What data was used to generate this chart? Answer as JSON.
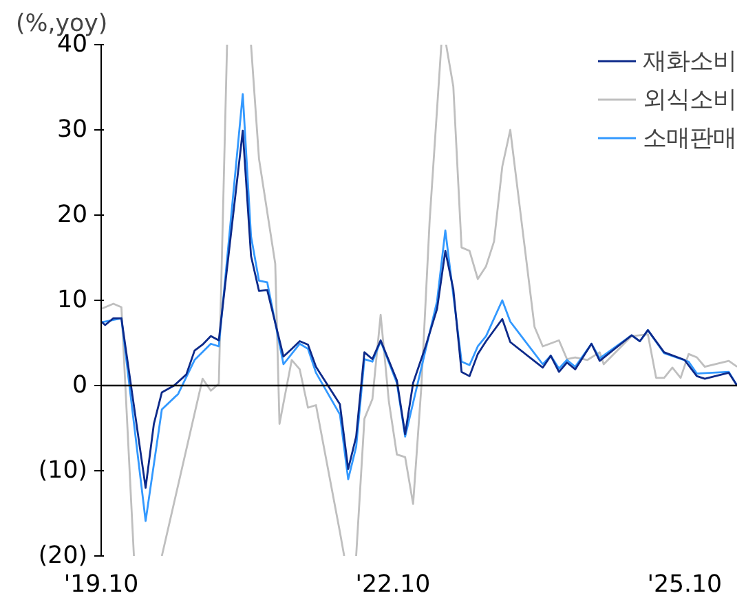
{
  "chart_data": {
    "type": "line",
    "ylabel": "(%,yoy)",
    "xlim": [
      "2019-10",
      "2026-04-16"
    ],
    "ylim": [
      -20,
      40
    ],
    "xticks": [
      {
        "value": "2019-10",
        "label": "'19.10"
      },
      {
        "value": "2022-10",
        "label": "'22.10"
      },
      {
        "value": "2025-10",
        "label": "'25.10"
      }
    ],
    "yticks": [
      {
        "value": -20,
        "label": "(20)"
      },
      {
        "value": -10,
        "label": "(10)"
      },
      0,
      10,
      20,
      30,
      40
    ],
    "grid": false,
    "legend": "top right",
    "marker": "none",
    "line_style": "solid",
    "ref_lines": [
      {
        "axis": "y",
        "value": 0,
        "color": "#000000"
      }
    ],
    "series": [
      {
        "name": "외식소비",
        "color": "#bfbfbf",
        "x": [
          "2019-10",
          "2019-11-16",
          "2019-12-16",
          "2020-02",
          "2020-03-16",
          "2020-05-16",
          "2020-10-16",
          "2020-11-16",
          "2020-12-16",
          "2021-01-16",
          "2021-02-16",
          "2021-04-16",
          "2021-05-16",
          "2021-07-16",
          "2021-08",
          "2021-09-16",
          "2021-10-16",
          "2021-11-16",
          "2021-12-16",
          "2022-03-16",
          "2022-04",
          "2022-04-16",
          "2022-05-16",
          "2022-06-16",
          "2022-07-16",
          "2022-08-16",
          "2022-09-16",
          "2022-10-16",
          "2022-11-16",
          "2022-12-16",
          "2023-01-16",
          "2023-02-16",
          "2023-04-01",
          "2023-04-06",
          "2023-04-19",
          "2023-05-16",
          "2023-06-16",
          "2023-07-16",
          "2023-08-16",
          "2023-09-16",
          "2023-10-16",
          "2023-11-16",
          "2023-12-16",
          "2024-03-16",
          "2024-04-16",
          "2024-06-16",
          "2024-07-16",
          "2024-08-16",
          "2024-10",
          "2024-11-16",
          "2024-12",
          "2025-03-16",
          "2025-05-16",
          "2025-06-16",
          "2025-07-16",
          "2025-08-16",
          "2025-09-16",
          "2025-10-16",
          "2025-11-16",
          "2025-12-16",
          "2026-03-16",
          "2026-04-16"
        ],
        "values": [
          9,
          9.6,
          9.2,
          -20,
          null,
          -20,
          0.8,
          -0.6,
          0.2,
          40,
          null,
          40,
          26.6,
          14.3,
          -4.5,
          3,
          1.9,
          -2.6,
          -2.3,
          -17.2,
          -20,
          null,
          -20,
          -3.9,
          -1.6,
          8.3,
          -1.9,
          -8.1,
          -8.4,
          -13.9,
          -0.1,
          19.3,
          40,
          null,
          40,
          35.1,
          16.2,
          15.8,
          12.5,
          14,
          16.9,
          25.7,
          30,
          6.9,
          4.6,
          5.3,
          3.1,
          3.3,
          3,
          3.9,
          2.5,
          5.8,
          6.0,
          0.9,
          0.9,
          2.1,
          0.9,
          3.7,
          3.3,
          2.2,
          2.9,
          2.2
        ]
      },
      {
        "name": "소매판매",
        "color": "#3399ff",
        "x": [
          "2019-10",
          "2019-12-16",
          "2020-03-16",
          "2020-05-16",
          "2020-07-16",
          "2020-09-16",
          "2020-11-16",
          "2020-12-16",
          "2021-03-16",
          "2021-04-16",
          "2021-05-16",
          "2021-06-16",
          "2021-08-16",
          "2021-10-16",
          "2021-11-16",
          "2021-12-16",
          "2022-03-16",
          "2022-04-16",
          "2022-05-16",
          "2022-06-16",
          "2022-07-16",
          "2022-08-16",
          "2022-10-16",
          "2022-11-16",
          "2023-03-16",
          "2023-04-16",
          "2023-06-16",
          "2023-07-16",
          "2023-08-16",
          "2023-09-16",
          "2023-11-16",
          "2023-12-16",
          "2024-04-16",
          "2024-05-16",
          "2024-06-16",
          "2024-07-16",
          "2024-08-16",
          "2024-10-16",
          "2024-11-16",
          "2025-03-16",
          "2025-04-16",
          "2025-05-16",
          "2025-07-16",
          "2025-10-16",
          "2025-11-16",
          "2026-03-16",
          "2026-04-16"
        ],
        "values": [
          7.4,
          7.9,
          -15.9,
          -2.8,
          -1,
          3,
          4.9,
          4.6,
          34.2,
          17.5,
          12.3,
          12.1,
          2.5,
          4.9,
          4.3,
          1.5,
          -3.4,
          -11.0,
          -7.2,
          3.1,
          2.8,
          5.2,
          0.3,
          -6.0,
          9.9,
          18.2,
          2.8,
          2.4,
          4.6,
          5.8,
          10,
          7.5,
          2.5,
          3.5,
          2.0,
          3.0,
          2.2,
          4.9,
          3.2,
          5.9,
          5.2,
          6.5,
          3.8,
          2.8,
          1.4,
          1.6,
          0
        ]
      },
      {
        "name": "재화소비",
        "color": "#0d2a8a",
        "x": [
          "2019-10",
          "2019-10-16",
          "2019-11-16",
          "2019-12-16",
          "2020-03-16",
          "2020-04-16",
          "2020-05-16",
          "2020-07",
          "2020-08-16",
          "2020-09-16",
          "2020-10-16",
          "2020-11-16",
          "2020-12-16",
          "2021-03-16",
          "2021-04-16",
          "2021-05-16",
          "2021-06-16",
          "2021-08-16",
          "2021-09-16",
          "2021-10-16",
          "2021-11-16",
          "2021-12-16",
          "2022-03-16",
          "2022-04-16",
          "2022-05-16",
          "2022-06-16",
          "2022-07-16",
          "2022-08-16",
          "2022-10-16",
          "2022-11-16",
          "2022-12-16",
          "2023-02",
          "2023-03-16",
          "2023-04-16",
          "2023-05-16",
          "2023-06-16",
          "2023-07-16",
          "2023-08-16",
          "2023-09-16",
          "2023-11-16",
          "2023-12-16",
          "2024-04-16",
          "2024-05-16",
          "2024-06-16",
          "2024-07-16",
          "2024-08-16",
          "2024-10-16",
          "2024-11-16",
          "2025-03-16",
          "2025-04-16",
          "2025-05-16",
          "2025-07-16",
          "2025-10",
          "2025-11-16",
          "2025-12-16",
          "2026-03-16",
          "2026-04-16"
        ],
        "values": [
          7.5,
          7.1,
          7.9,
          7.9,
          -12,
          -4.5,
          -0.8,
          0,
          1.3,
          4.1,
          4.8,
          5.8,
          5.3,
          29.9,
          15.2,
          11.1,
          11.2,
          3.4,
          4.3,
          5.2,
          4.8,
          2.2,
          -2.2,
          -9.8,
          -6,
          3.9,
          3.1,
          5.3,
          0.6,
          -5.7,
          0.3,
          4.6,
          9,
          15.8,
          11.3,
          1.6,
          1.1,
          3.7,
          5.2,
          7.8,
          5.1,
          2.1,
          3.5,
          1.6,
          2.7,
          1.9,
          4.9,
          2.9,
          5.9,
          5.2,
          6.5,
          3.9,
          3.0,
          1.1,
          0.8,
          1.5,
          0
        ]
      }
    ]
  }
}
